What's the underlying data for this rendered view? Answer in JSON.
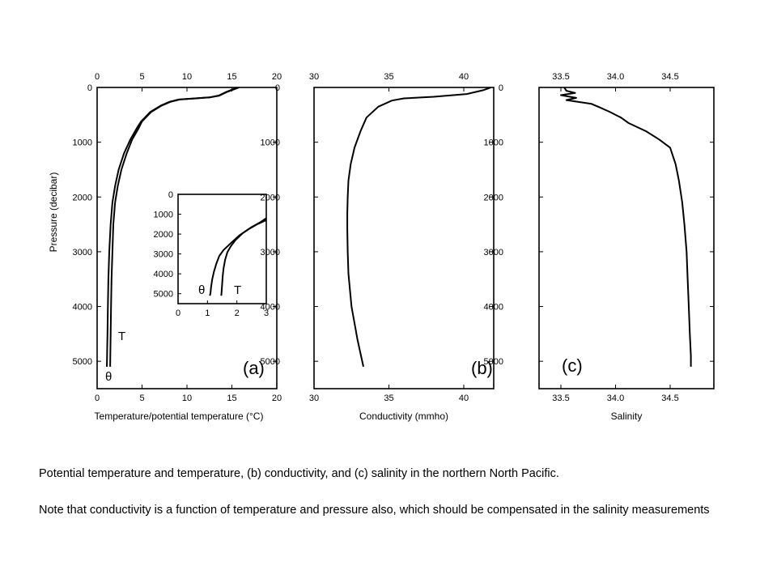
{
  "chart_data": [
    {
      "id": "a",
      "type": "line",
      "panel_label": "(a)",
      "xlabel": "Temperature/potential temperature (°C)",
      "ylabel": "Pressure (decibar)",
      "xlim": [
        0,
        20
      ],
      "ylim": [
        5500,
        0
      ],
      "xticks": [
        0,
        5,
        10,
        15,
        20
      ],
      "yticks": [
        0,
        1000,
        2000,
        3000,
        4000,
        5000
      ],
      "curve_labels": [
        "T",
        "θ"
      ],
      "series": [
        {
          "label": "T",
          "x": [
            15.8,
            14.5,
            13.6,
            12.6,
            11.0,
            9.2,
            8.2,
            7.2,
            6.0,
            5.0,
            4.6,
            3.9,
            3.3,
            2.7,
            2.3,
            2.0,
            1.8,
            1.7,
            1.6,
            1.55,
            1.5,
            1.48,
            1.46,
            1.45
          ],
          "y": [
            0,
            80,
            150,
            180,
            200,
            220,
            260,
            330,
            450,
            620,
            750,
            950,
            1200,
            1500,
            1800,
            2100,
            2500,
            3000,
            3500,
            4000,
            4500,
            4800,
            5000,
            5100
          ]
        },
        {
          "label": "θ",
          "x": [
            15.6,
            14.4,
            13.5,
            12.5,
            10.9,
            9.1,
            8.1,
            7.1,
            5.9,
            4.9,
            4.4,
            3.7,
            3.0,
            2.4,
            2.0,
            1.7,
            1.5,
            1.35,
            1.25,
            1.2,
            1.15,
            1.12,
            1.1,
            1.08
          ],
          "y": [
            0,
            80,
            150,
            180,
            200,
            220,
            260,
            330,
            450,
            620,
            750,
            950,
            1200,
            1500,
            1800,
            2100,
            2500,
            3000,
            3500,
            4000,
            4500,
            4800,
            5000,
            5100
          ]
        }
      ]
    },
    {
      "id": "a-inset",
      "type": "line",
      "xlim": [
        0,
        3
      ],
      "ylim": [
        5500,
        0
      ],
      "xticks": [
        0,
        1,
        2,
        3
      ],
      "yticks": [
        0,
        1000,
        2000,
        3000,
        4000,
        5000
      ],
      "curve_labels": [
        "θ",
        "T"
      ],
      "series": [
        {
          "label": "θ",
          "x": [
            3.0,
            2.7,
            2.4,
            2.1,
            1.8,
            1.55,
            1.4,
            1.3,
            1.22,
            1.16,
            1.12,
            1.1,
            1.08
          ],
          "y": [
            1300,
            1500,
            1750,
            2050,
            2450,
            2800,
            3100,
            3500,
            3900,
            4300,
            4700,
            5000,
            5100
          ]
        },
        {
          "label": "T",
          "x": [
            3.0,
            2.8,
            2.5,
            2.2,
            1.95,
            1.8,
            1.68,
            1.6,
            1.55,
            1.52,
            1.5,
            1.48,
            1.47
          ],
          "y": [
            1200,
            1400,
            1650,
            1950,
            2300,
            2600,
            2900,
            3300,
            3700,
            4100,
            4500,
            4900,
            5100
          ]
        }
      ]
    },
    {
      "id": "b",
      "type": "line",
      "panel_label": "(b)",
      "xlabel": "Conductivity (mmho)",
      "xlim": [
        30,
        42
      ],
      "ylim": [
        5500,
        0
      ],
      "xticks": [
        30,
        35,
        40
      ],
      "yticks": [
        0,
        1000,
        2000,
        3000,
        4000,
        5000
      ],
      "series": [
        {
          "label": "",
          "x": [
            41.8,
            41.3,
            40.2,
            38.0,
            36.0,
            35.2,
            34.3,
            33.5,
            33.1,
            32.7,
            32.45,
            32.3,
            32.25,
            32.22,
            32.22,
            32.25,
            32.3,
            32.5,
            32.9,
            33.3
          ],
          "y": [
            0,
            50,
            120,
            170,
            200,
            240,
            350,
            550,
            800,
            1100,
            1400,
            1700,
            2000,
            2300,
            2600,
            3000,
            3400,
            4000,
            4600,
            5100
          ]
        }
      ]
    },
    {
      "id": "c",
      "type": "line",
      "panel_label": "(c)",
      "xlabel": "Salinity",
      "xlim": [
        33.3,
        34.9
      ],
      "ylim": [
        5500,
        0
      ],
      "xticks": [
        33.5,
        34.0,
        34.5
      ],
      "yticks": [
        0,
        1000,
        2000,
        3000,
        4000,
        5000
      ],
      "series": [
        {
          "label": "",
          "x": [
            33.53,
            33.55,
            33.63,
            33.5,
            33.64,
            33.55,
            33.78,
            33.85,
            33.95,
            34.05,
            34.12,
            34.28,
            34.4,
            34.5,
            34.55,
            34.58,
            34.61,
            34.63,
            34.65,
            34.66,
            34.67,
            34.68,
            34.69,
            34.69
          ],
          "y": [
            0,
            60,
            100,
            140,
            190,
            230,
            300,
            360,
            450,
            550,
            650,
            800,
            950,
            1100,
            1400,
            1700,
            2100,
            2500,
            3000,
            3500,
            4000,
            4500,
            4900,
            5100
          ]
        }
      ]
    }
  ],
  "caption": {
    "line1": "Potential temperature  and temperature,  (b) conductivity, and (c) salinity in the northern North Pacific.",
    "line2": "Note that conductivity is a function of temperature  and pressure also, which should be compensated  in the salinity measurements"
  }
}
